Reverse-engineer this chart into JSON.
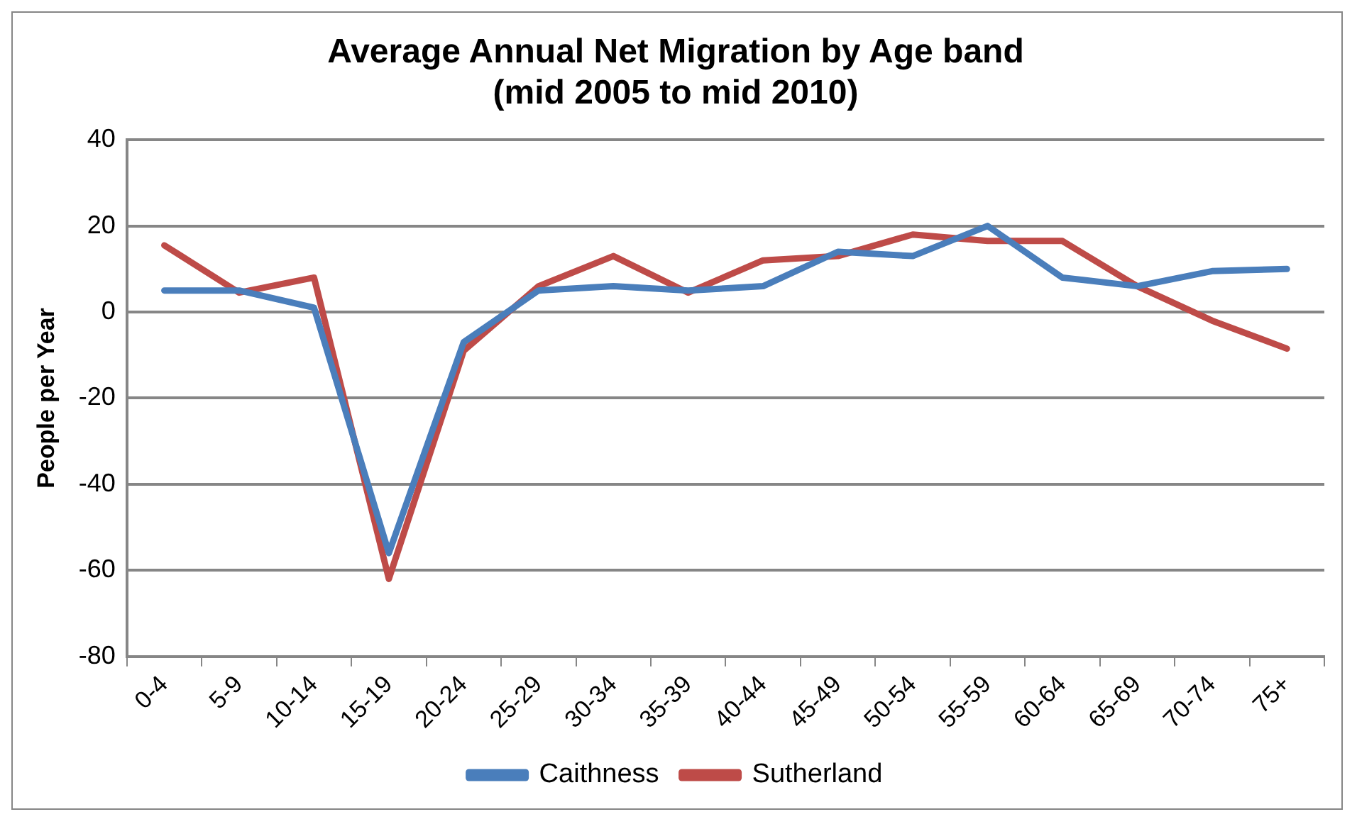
{
  "chart_data": {
    "type": "line",
    "title": "Average Annual Net Migration by Age band\n(mid 2005 to mid 2010)",
    "ylabel": "People per Year",
    "categories": [
      "0-4",
      "5-9",
      "10-14",
      "15-19",
      "20-24",
      "25-29",
      "30-34",
      "35-39",
      "40-44",
      "45-49",
      "50-54",
      "55-59",
      "60-64",
      "65-69",
      "70-74",
      "75+"
    ],
    "series": [
      {
        "name": "Caithness",
        "color": "#4a7ebb",
        "values": [
          5,
          5,
          1,
          -56,
          -7,
          5,
          6,
          5,
          6,
          14,
          13,
          20,
          8,
          6,
          9.5,
          10
        ]
      },
      {
        "name": "Sutherland",
        "color": "#be4b48",
        "values": [
          15.5,
          4.5,
          8,
          -62,
          -9,
          6,
          13,
          4.5,
          12,
          13,
          18,
          16.5,
          16.5,
          6,
          -2,
          -8.5
        ]
      }
    ],
    "ylim": [
      -80,
      40
    ],
    "yticks": [
      -80,
      -60,
      -40,
      -20,
      0,
      20,
      40
    ],
    "grid": "y",
    "legend": "bottom",
    "marker": "none",
    "line_style": "solid"
  }
}
